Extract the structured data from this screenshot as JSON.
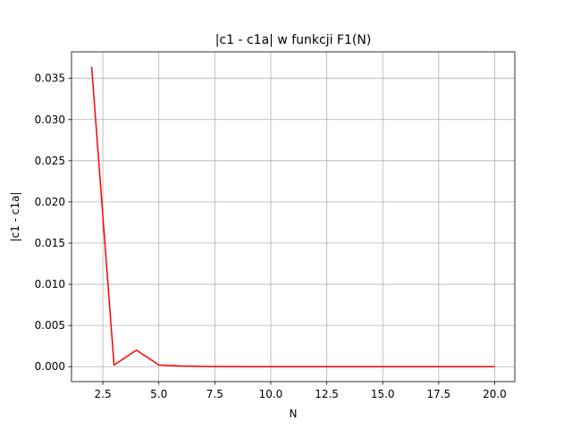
{
  "chart_data": {
    "type": "line",
    "title": "|c1 - c1a| w funkcji F1(N)",
    "xlabel": "N",
    "ylabel": "|c1 - c1a|",
    "xlim": [
      1.1,
      20.9
    ],
    "ylim": [
      -0.00182,
      0.03822
    ],
    "grid": true,
    "legend": "none",
    "xticks": [
      2.5,
      5.0,
      7.5,
      10.0,
      12.5,
      15.0,
      17.5,
      20.0
    ],
    "xtick_labels": [
      "2.5",
      "5.0",
      "7.5",
      "10.0",
      "12.5",
      "15.0",
      "17.5",
      "20.0"
    ],
    "yticks": [
      0.0,
      0.005,
      0.01,
      0.015,
      0.02,
      0.025,
      0.03,
      0.035
    ],
    "ytick_labels": [
      "0.000",
      "0.005",
      "0.010",
      "0.015",
      "0.020",
      "0.025",
      "0.030",
      "0.035"
    ],
    "series": [
      {
        "color": "#ff0000",
        "x": [
          2,
          3,
          4,
          5,
          6,
          7,
          8,
          9,
          10,
          11,
          12,
          13,
          14,
          15,
          16,
          17,
          18,
          19,
          20
        ],
        "values": [
          0.0364,
          0.0002,
          0.002,
          0.0002,
          8e-05,
          3e-05,
          1e-05,
          0.0,
          0.0,
          0.0,
          0.0,
          0.0,
          0.0,
          0.0,
          0.0,
          0.0,
          0.0,
          0.0,
          0.0
        ]
      }
    ]
  }
}
